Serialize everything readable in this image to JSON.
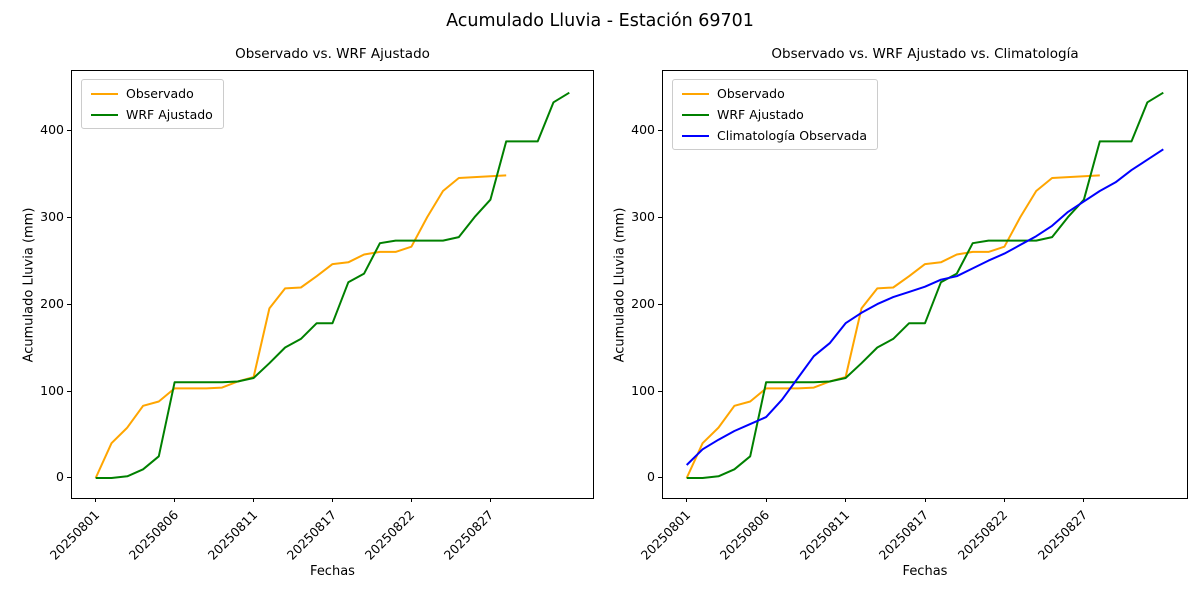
{
  "figure": {
    "title": "Acumulado Lluvia - Estación 69701",
    "background_color": "#ffffff",
    "text_color": "#000000"
  },
  "chart_data": [
    {
      "type": "line",
      "title": "Observado vs. WRF Ajustado",
      "xlabel": "Fechas",
      "ylabel": "Acumulado Lluvia (mm)",
      "grid": false,
      "legend_position": "upper-left",
      "ylim": [
        -23,
        468
      ],
      "yticks": [
        0,
        100,
        200,
        300,
        400
      ],
      "xtick_labels": [
        "20250801",
        "20250806",
        "20250811",
        "20250817",
        "20250822",
        "20250827"
      ],
      "xtick_positions": [
        0,
        5,
        10,
        15,
        20,
        25
      ],
      "x": [
        "20250801",
        "20250802",
        "20250803",
        "20250804",
        "20250805",
        "20250806",
        "20250807",
        "20250808",
        "20250809",
        "20250810",
        "20250811",
        "20250812",
        "20250813",
        "20250814",
        "20250815",
        "20250817",
        "20250818",
        "20250819",
        "20250820",
        "20250821",
        "20250822",
        "20250823",
        "20250824",
        "20250825",
        "20250826",
        "20250827",
        "20250828",
        "20250829",
        "20250830",
        "20250831",
        "20250901"
      ],
      "series": [
        {
          "name": "Observado",
          "color": "#FFA500",
          "values": [
            0,
            40,
            58,
            83,
            88,
            103,
            103,
            103,
            104,
            111,
            116,
            195,
            218,
            219,
            232,
            246,
            248,
            257,
            260,
            260,
            266,
            300,
            330,
            345,
            346,
            347,
            348
          ]
        },
        {
          "name": "WRF Ajustado",
          "color": "#008000",
          "values": [
            0,
            0,
            2,
            10,
            25,
            110,
            110,
            110,
            110,
            111,
            115,
            132,
            150,
            160,
            178,
            178,
            225,
            235,
            270,
            273,
            273,
            273,
            273,
            277,
            300,
            320,
            387,
            387,
            387,
            432,
            443
          ]
        }
      ]
    },
    {
      "type": "line",
      "title": "Observado vs. WRF Ajustado vs. Climatología",
      "xlabel": "Fechas",
      "ylabel": "Acumulado Lluvia (mm)",
      "grid": false,
      "legend_position": "upper-left",
      "ylim": [
        -23,
        468
      ],
      "yticks": [
        0,
        100,
        200,
        300,
        400
      ],
      "xtick_labels": [
        "20250801",
        "20250806",
        "20250811",
        "20250817",
        "20250822",
        "20250827"
      ],
      "xtick_positions": [
        0,
        5,
        10,
        15,
        20,
        25
      ],
      "x": [
        "20250801",
        "20250802",
        "20250803",
        "20250804",
        "20250805",
        "20250806",
        "20250807",
        "20250808",
        "20250809",
        "20250810",
        "20250811",
        "20250812",
        "20250813",
        "20250814",
        "20250815",
        "20250817",
        "20250818",
        "20250819",
        "20250820",
        "20250821",
        "20250822",
        "20250823",
        "20250824",
        "20250825",
        "20250826",
        "20250827",
        "20250828",
        "20250829",
        "20250830",
        "20250831",
        "20250901"
      ],
      "series": [
        {
          "name": "Observado",
          "color": "#FFA500",
          "values": [
            0,
            40,
            58,
            83,
            88,
            103,
            103,
            103,
            104,
            111,
            116,
            195,
            218,
            219,
            232,
            246,
            248,
            257,
            260,
            260,
            266,
            300,
            330,
            345,
            346,
            347,
            348
          ]
        },
        {
          "name": "WRF Ajustado",
          "color": "#008000",
          "values": [
            0,
            0,
            2,
            10,
            25,
            110,
            110,
            110,
            110,
            111,
            115,
            132,
            150,
            160,
            178,
            178,
            225,
            235,
            270,
            273,
            273,
            273,
            273,
            277,
            300,
            320,
            387,
            387,
            387,
            432,
            443
          ]
        },
        {
          "name": "Climatología Observada",
          "color": "#0000FF",
          "values": [
            15,
            33,
            44,
            54,
            62,
            70,
            90,
            115,
            140,
            155,
            178,
            190,
            200,
            208,
            214,
            220,
            228,
            232,
            241,
            250,
            258,
            268,
            278,
            290,
            306,
            318,
            330,
            340,
            354,
            366,
            378
          ]
        }
      ]
    }
  ]
}
